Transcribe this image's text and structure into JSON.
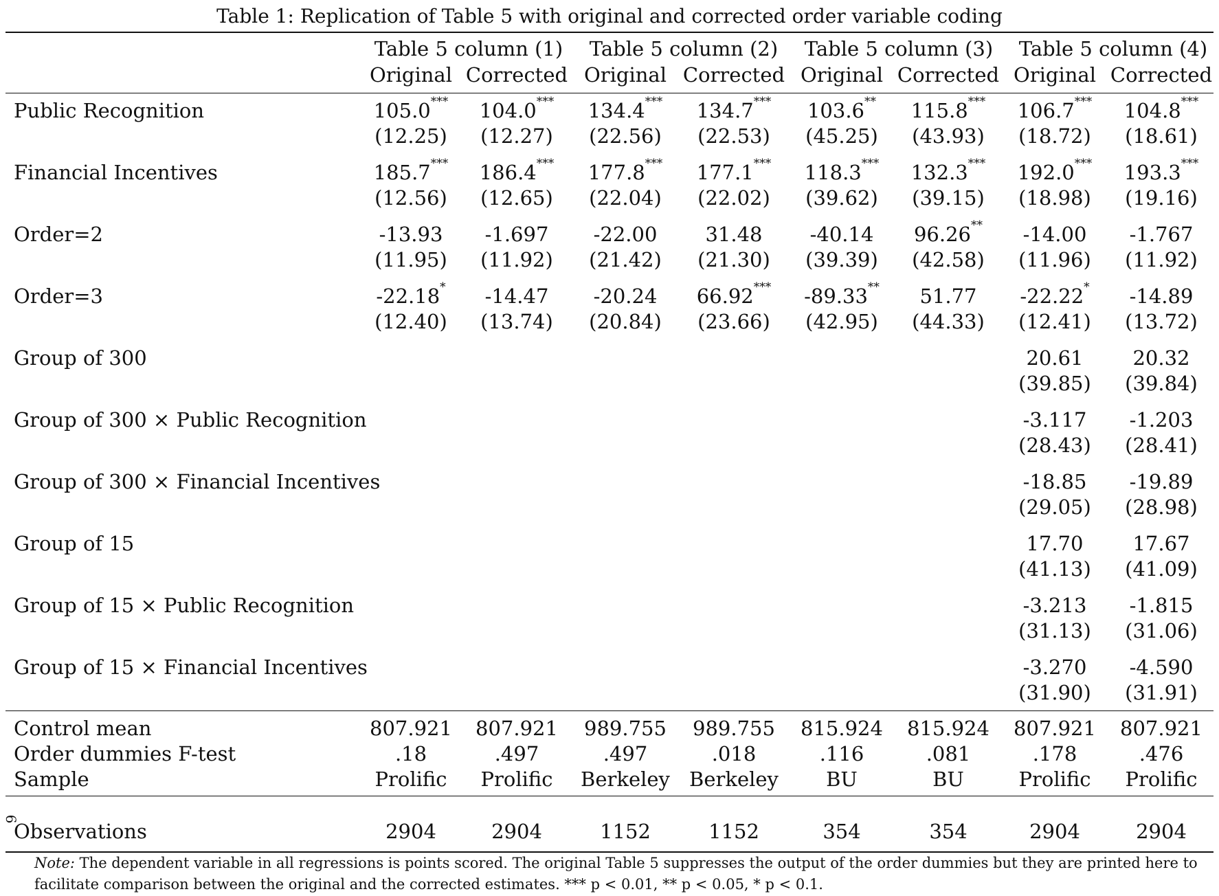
{
  "caption": "Table 1: Replication of Table 5 with original and corrected order variable coding",
  "group_headers": [
    "Table 5 column (1)",
    "Table 5 column (2)",
    "Table 5 column (3)",
    "Table 5 column (4)"
  ],
  "sub_headers": [
    "Original",
    "Corrected",
    "Original",
    "Corrected",
    "Original",
    "Corrected",
    "Original",
    "Corrected"
  ],
  "rows": [
    {
      "label": "Public Recognition",
      "coef": [
        "105.0",
        "104.0",
        "134.4",
        "134.7",
        "103.6",
        "115.8",
        "106.7",
        "104.8"
      ],
      "stars": [
        "***",
        "***",
        "***",
        "***",
        "**",
        "***",
        "***",
        "***"
      ],
      "se": [
        "(12.25)",
        "(12.27)",
        "(22.56)",
        "(22.53)",
        "(45.25)",
        "(43.93)",
        "(18.72)",
        "(18.61)"
      ]
    },
    {
      "label": "Financial Incentives",
      "coef": [
        "185.7",
        "186.4",
        "177.8",
        "177.1",
        "118.3",
        "132.3",
        "192.0",
        "193.3"
      ],
      "stars": [
        "***",
        "***",
        "***",
        "***",
        "***",
        "***",
        "***",
        "***"
      ],
      "se": [
        "(12.56)",
        "(12.65)",
        "(22.04)",
        "(22.02)",
        "(39.62)",
        "(39.15)",
        "(18.98)",
        "(19.16)"
      ]
    },
    {
      "label": "Order=2",
      "coef": [
        "-13.93",
        "-1.697",
        "-22.00",
        "31.48",
        "-40.14",
        "96.26",
        "-14.00",
        "-1.767"
      ],
      "stars": [
        "",
        "",
        "",
        "",
        "",
        "**",
        "",
        ""
      ],
      "se": [
        "(11.95)",
        "(11.92)",
        "(21.42)",
        "(21.30)",
        "(39.39)",
        "(42.58)",
        "(11.96)",
        "(11.92)"
      ]
    },
    {
      "label": "Order=3",
      "coef": [
        "-22.18",
        "-14.47",
        "-20.24",
        "66.92",
        "-89.33",
        "51.77",
        "-22.22",
        "-14.89"
      ],
      "stars": [
        "*",
        "",
        "",
        "***",
        "**",
        "",
        "*",
        ""
      ],
      "se": [
        "(12.40)",
        "(13.74)",
        "(20.84)",
        "(23.66)",
        "(42.95)",
        "(44.33)",
        "(12.41)",
        "(13.72)"
      ]
    },
    {
      "label": "Group of 300",
      "coef": [
        "",
        "",
        "",
        "",
        "",
        "",
        "20.61",
        "20.32"
      ],
      "stars": [
        "",
        "",
        "",
        "",
        "",
        "",
        "",
        ""
      ],
      "se": [
        "",
        "",
        "",
        "",
        "",
        "",
        "(39.85)",
        "(39.84)"
      ]
    },
    {
      "label": "Group of 300 × Public Recognition",
      "coef": [
        "",
        "",
        "",
        "",
        "",
        "",
        "-3.117",
        "-1.203"
      ],
      "stars": [
        "",
        "",
        "",
        "",
        "",
        "",
        "",
        ""
      ],
      "se": [
        "",
        "",
        "",
        "",
        "",
        "",
        "(28.43)",
        "(28.41)"
      ]
    },
    {
      "label": "Group of 300 × Financial Incentives",
      "coef": [
        "",
        "",
        "",
        "",
        "",
        "",
        "-18.85",
        "-19.89"
      ],
      "stars": [
        "",
        "",
        "",
        "",
        "",
        "",
        "",
        ""
      ],
      "se": [
        "",
        "",
        "",
        "",
        "",
        "",
        "(29.05)",
        "(28.98)"
      ]
    },
    {
      "label": "Group of 15",
      "coef": [
        "",
        "",
        "",
        "",
        "",
        "",
        "17.70",
        "17.67"
      ],
      "stars": [
        "",
        "",
        "",
        "",
        "",
        "",
        "",
        ""
      ],
      "se": [
        "",
        "",
        "",
        "",
        "",
        "",
        "(41.13)",
        "(41.09)"
      ]
    },
    {
      "label": "Group of 15 × Public Recognition",
      "coef": [
        "",
        "",
        "",
        "",
        "",
        "",
        "-3.213",
        "-1.815"
      ],
      "stars": [
        "",
        "",
        "",
        "",
        "",
        "",
        "",
        ""
      ],
      "se": [
        "",
        "",
        "",
        "",
        "",
        "",
        "(31.13)",
        "(31.06)"
      ]
    },
    {
      "label": "Group of 15 × Financial Incentives",
      "coef": [
        "",
        "",
        "",
        "",
        "",
        "",
        "-3.270",
        "-4.590"
      ],
      "stars": [
        "",
        "",
        "",
        "",
        "",
        "",
        "",
        ""
      ],
      "se": [
        "",
        "",
        "",
        "",
        "",
        "",
        "(31.90)",
        "(31.91)"
      ]
    }
  ],
  "stats": [
    {
      "label": "Control mean",
      "values": [
        "807.921",
        "807.921",
        "989.755",
        "989.755",
        "815.924",
        "815.924",
        "807.921",
        "807.921"
      ]
    },
    {
      "label": "Order dummies F-test",
      "values": [
        ".18",
        ".497",
        ".497",
        ".018",
        ".116",
        ".081",
        ".178",
        ".476"
      ]
    },
    {
      "label": "Sample",
      "values": [
        "Prolific",
        "Prolific",
        "Berkeley",
        "Berkeley",
        "BU",
        "BU",
        "Prolific",
        "Prolific"
      ]
    }
  ],
  "observations": {
    "label": "Observations",
    "values": [
      "2904",
      "2904",
      "1152",
      "1152",
      "354",
      "354",
      "2904",
      "2904"
    ]
  },
  "page_mark": "9",
  "note": {
    "prefix": "Note:",
    "text": "The dependent variable in all regressions is points scored. The original Table 5 suppresses the output of the order dummies but they are printed here to facilitate comparison between the original and the corrected estimates. *** p < 0.01, ** p < 0.05, * p < 0.1."
  }
}
